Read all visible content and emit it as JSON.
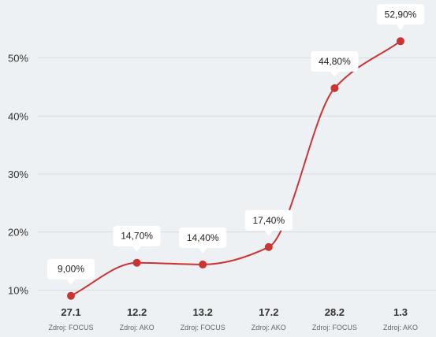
{
  "chart_data": {
    "type": "line",
    "title": "",
    "xlabel": "",
    "ylabel": "",
    "categories": [
      "27.1",
      "12.2",
      "13.2",
      "17.2",
      "28.2",
      "1.3"
    ],
    "sources": [
      "Zdroj: FOCUS",
      "Zdroj: AKO",
      "Zdroj: FOCUS",
      "Zdroj: AKO",
      "Zdroj: FOCUS",
      "Zdroj: AKO"
    ],
    "series": [
      {
        "values": [
          9.0,
          14.7,
          14.4,
          17.4,
          44.8,
          52.9
        ],
        "data_labels": [
          "9,00%",
          "14,70%",
          "14,40%",
          "17,40%",
          "44,80%",
          "52,90%"
        ],
        "color": "#cc3333"
      }
    ],
    "y_ticks": [
      10,
      20,
      30,
      40,
      50
    ],
    "y_tick_labels": [
      "10%",
      "20%",
      "30%",
      "40%",
      "50%"
    ],
    "ylim": [
      5.7,
      60
    ],
    "grid": true,
    "legend": "none"
  }
}
